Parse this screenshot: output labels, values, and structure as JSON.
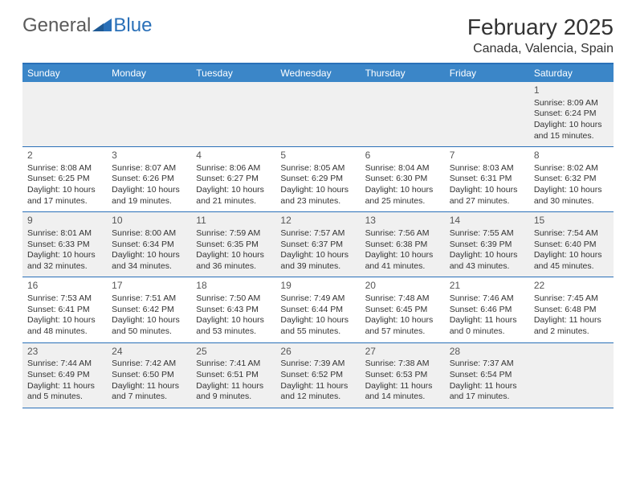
{
  "logo": {
    "word1": "General",
    "word2": "Blue",
    "color1": "#5a5a5a",
    "color2": "#2a70b8"
  },
  "title": "February 2025",
  "location": "Canada, Valencia, Spain",
  "colors": {
    "header_bg": "#3b86c8",
    "rule": "#2a70b8",
    "alt_row": "#f0f0f0",
    "text": "#333333"
  },
  "dayheaders": [
    "Sunday",
    "Monday",
    "Tuesday",
    "Wednesday",
    "Thursday",
    "Friday",
    "Saturday"
  ],
  "weeks": [
    [
      null,
      null,
      null,
      null,
      null,
      null,
      {
        "n": "1",
        "sr": "8:09 AM",
        "ss": "6:24 PM",
        "dl": "10 hours and 15 minutes."
      }
    ],
    [
      {
        "n": "2",
        "sr": "8:08 AM",
        "ss": "6:25 PM",
        "dl": "10 hours and 17 minutes."
      },
      {
        "n": "3",
        "sr": "8:07 AM",
        "ss": "6:26 PM",
        "dl": "10 hours and 19 minutes."
      },
      {
        "n": "4",
        "sr": "8:06 AM",
        "ss": "6:27 PM",
        "dl": "10 hours and 21 minutes."
      },
      {
        "n": "5",
        "sr": "8:05 AM",
        "ss": "6:29 PM",
        "dl": "10 hours and 23 minutes."
      },
      {
        "n": "6",
        "sr": "8:04 AM",
        "ss": "6:30 PM",
        "dl": "10 hours and 25 minutes."
      },
      {
        "n": "7",
        "sr": "8:03 AM",
        "ss": "6:31 PM",
        "dl": "10 hours and 27 minutes."
      },
      {
        "n": "8",
        "sr": "8:02 AM",
        "ss": "6:32 PM",
        "dl": "10 hours and 30 minutes."
      }
    ],
    [
      {
        "n": "9",
        "sr": "8:01 AM",
        "ss": "6:33 PM",
        "dl": "10 hours and 32 minutes."
      },
      {
        "n": "10",
        "sr": "8:00 AM",
        "ss": "6:34 PM",
        "dl": "10 hours and 34 minutes."
      },
      {
        "n": "11",
        "sr": "7:59 AM",
        "ss": "6:35 PM",
        "dl": "10 hours and 36 minutes."
      },
      {
        "n": "12",
        "sr": "7:57 AM",
        "ss": "6:37 PM",
        "dl": "10 hours and 39 minutes."
      },
      {
        "n": "13",
        "sr": "7:56 AM",
        "ss": "6:38 PM",
        "dl": "10 hours and 41 minutes."
      },
      {
        "n": "14",
        "sr": "7:55 AM",
        "ss": "6:39 PM",
        "dl": "10 hours and 43 minutes."
      },
      {
        "n": "15",
        "sr": "7:54 AM",
        "ss": "6:40 PM",
        "dl": "10 hours and 45 minutes."
      }
    ],
    [
      {
        "n": "16",
        "sr": "7:53 AM",
        "ss": "6:41 PM",
        "dl": "10 hours and 48 minutes."
      },
      {
        "n": "17",
        "sr": "7:51 AM",
        "ss": "6:42 PM",
        "dl": "10 hours and 50 minutes."
      },
      {
        "n": "18",
        "sr": "7:50 AM",
        "ss": "6:43 PM",
        "dl": "10 hours and 53 minutes."
      },
      {
        "n": "19",
        "sr": "7:49 AM",
        "ss": "6:44 PM",
        "dl": "10 hours and 55 minutes."
      },
      {
        "n": "20",
        "sr": "7:48 AM",
        "ss": "6:45 PM",
        "dl": "10 hours and 57 minutes."
      },
      {
        "n": "21",
        "sr": "7:46 AM",
        "ss": "6:46 PM",
        "dl": "11 hours and 0 minutes."
      },
      {
        "n": "22",
        "sr": "7:45 AM",
        "ss": "6:48 PM",
        "dl": "11 hours and 2 minutes."
      }
    ],
    [
      {
        "n": "23",
        "sr": "7:44 AM",
        "ss": "6:49 PM",
        "dl": "11 hours and 5 minutes."
      },
      {
        "n": "24",
        "sr": "7:42 AM",
        "ss": "6:50 PM",
        "dl": "11 hours and 7 minutes."
      },
      {
        "n": "25",
        "sr": "7:41 AM",
        "ss": "6:51 PM",
        "dl": "11 hours and 9 minutes."
      },
      {
        "n": "26",
        "sr": "7:39 AM",
        "ss": "6:52 PM",
        "dl": "11 hours and 12 minutes."
      },
      {
        "n": "27",
        "sr": "7:38 AM",
        "ss": "6:53 PM",
        "dl": "11 hours and 14 minutes."
      },
      {
        "n": "28",
        "sr": "7:37 AM",
        "ss": "6:54 PM",
        "dl": "11 hours and 17 minutes."
      },
      null
    ]
  ],
  "labels": {
    "sunrise": "Sunrise:",
    "sunset": "Sunset:",
    "daylight": "Daylight:"
  }
}
